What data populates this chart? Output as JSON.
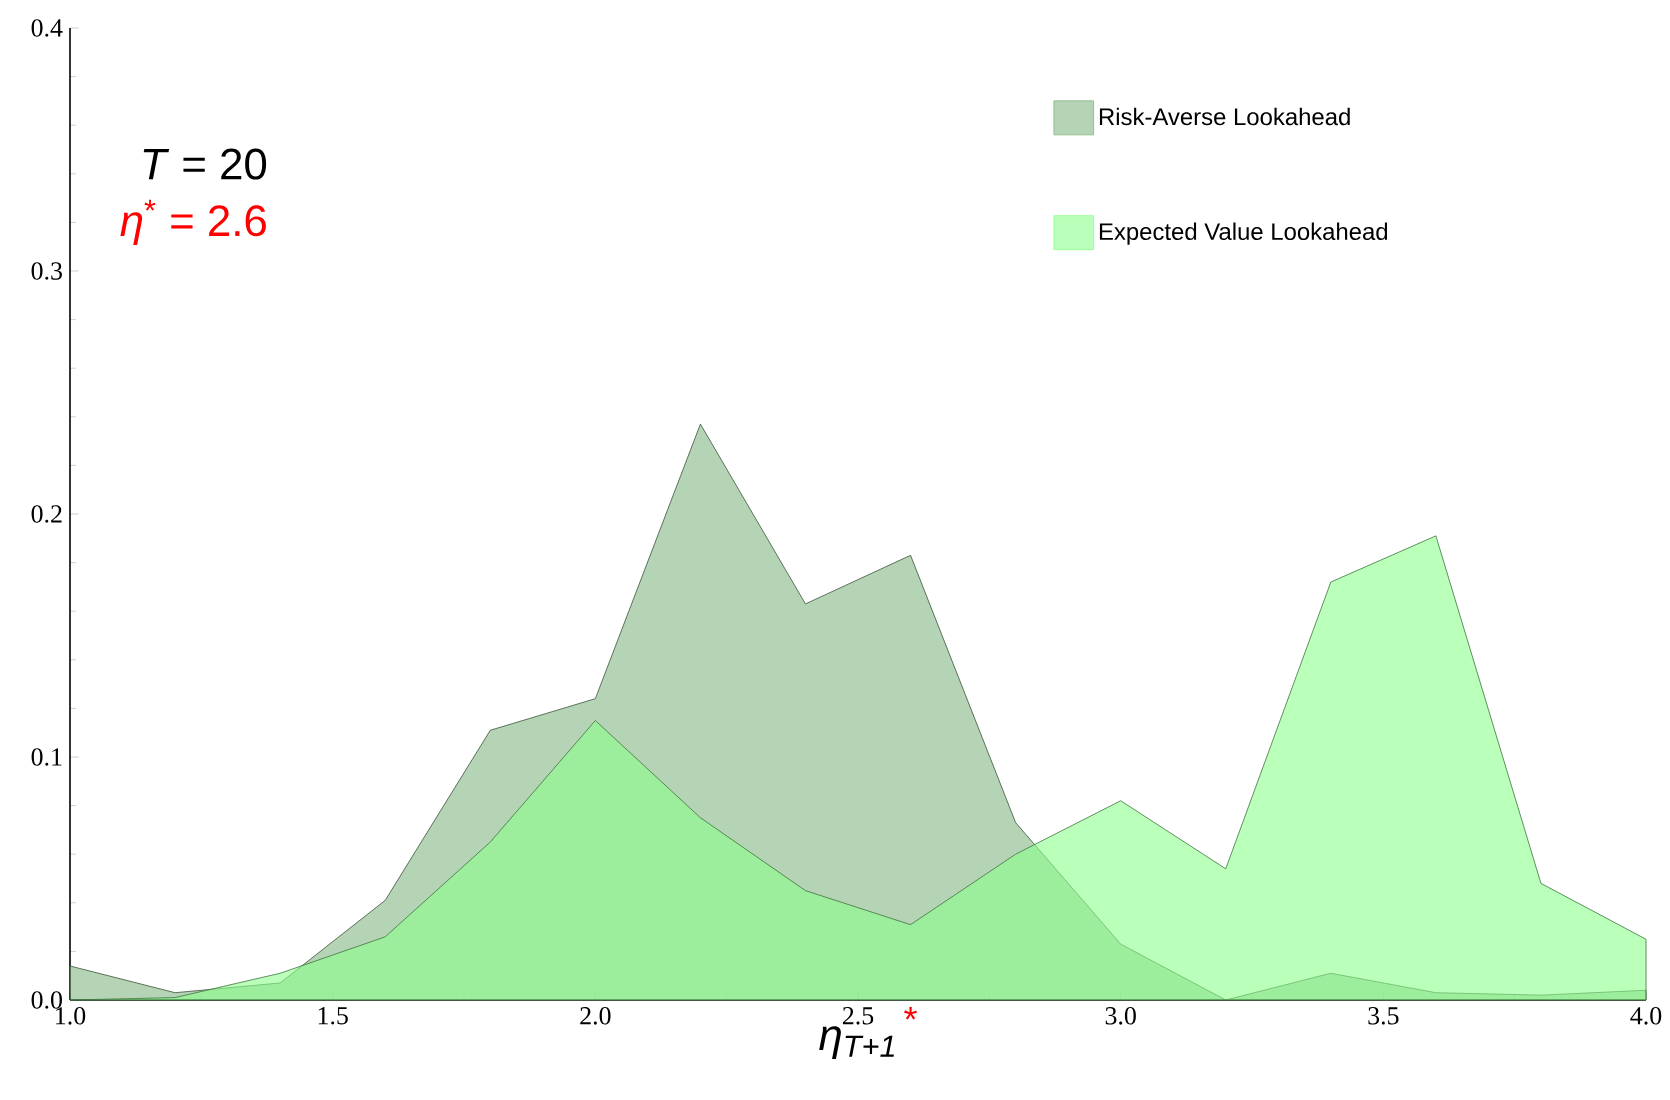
{
  "chart_data": {
    "type": "area",
    "xlabel": "η$_{T+1}$",
    "x": [
      1.0,
      1.2,
      1.4,
      1.6,
      1.8,
      2.0,
      2.2,
      2.4,
      2.6,
      2.8,
      3.0,
      3.2,
      3.4,
      3.6,
      3.8,
      4.0
    ],
    "series": [
      {
        "name": "Risk-Averse Lookahead",
        "color": "#83b883",
        "values": [
          0.014,
          0.003,
          0.007,
          0.041,
          0.111,
          0.124,
          0.237,
          0.163,
          0.183,
          0.073,
          0.023,
          0.0,
          0.011,
          0.003,
          0.002,
          0.004
        ]
      },
      {
        "name": "Expected Value Lookahead",
        "color": "#8cff8c",
        "values": [
          0.0,
          0.001,
          0.011,
          0.026,
          0.065,
          0.115,
          0.075,
          0.045,
          0.031,
          0.06,
          0.082,
          0.054,
          0.172,
          0.191,
          0.048,
          0.025
        ]
      }
    ],
    "xlim": [
      1.0,
      4.0
    ],
    "ylim": [
      0.0,
      0.4
    ],
    "xticks": [
      {
        "value": 1.0,
        "label": "1.0"
      },
      1.5,
      {
        "value": 2.0,
        "label": "2.0"
      },
      2.5,
      {
        "value": 3.0,
        "label": "3.0"
      },
      3.5,
      {
        "value": 4.0,
        "label": "4.0"
      }
    ],
    "yticks": [
      {
        "value": 0.0,
        "label": "0.0"
      },
      0.1,
      0.2,
      0.3,
      0.4
    ],
    "legend": "top right",
    "grid": false,
    "annotations": [
      "*T* = 20",
      "*η*$^{*}$ = 2.6",
      {
        "text": "*",
        "x": 2.6,
        "y": 0
      }
    ]
  }
}
